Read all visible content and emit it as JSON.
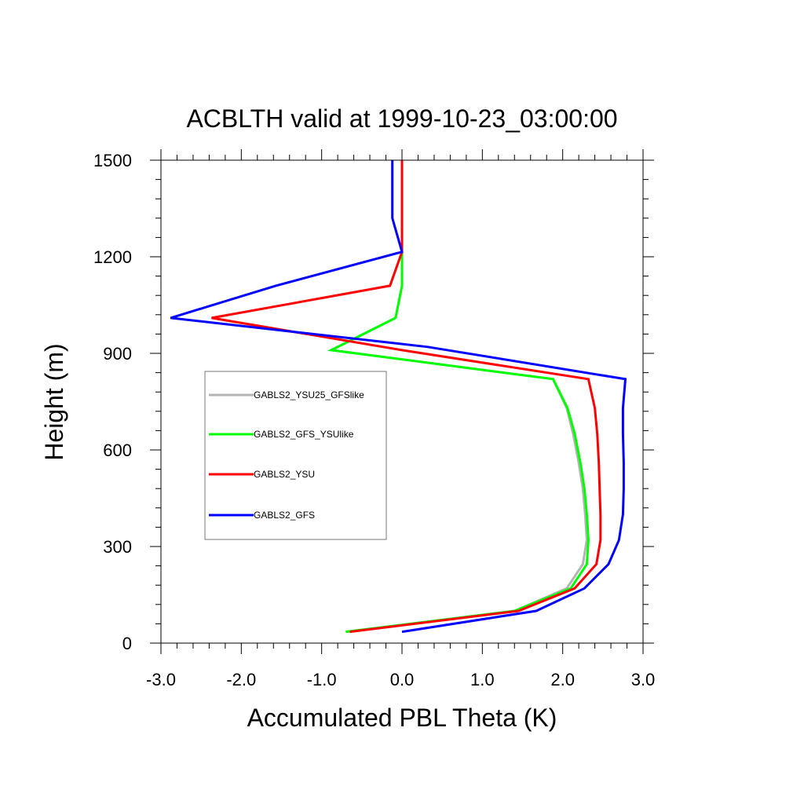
{
  "chart_data": {
    "type": "line",
    "title": "ACBLTH valid at 1999-10-23_03:00:00",
    "xlabel": "Accumulated PBL Theta (K)",
    "ylabel": "Height (m)",
    "xlim": [
      -3.0,
      3.0
    ],
    "ylim": [
      0,
      1500
    ],
    "xticks": [
      -3.0,
      -2.0,
      -1.0,
      0.0,
      1.0,
      2.0,
      3.0
    ],
    "xtick_labels": [
      "-3.0",
      "-2.0",
      "-1.0",
      "0.0",
      "1.0",
      "2.0",
      "3.0"
    ],
    "yticks": [
      0,
      300,
      600,
      900,
      1200,
      1500
    ],
    "ytick_labels": [
      "0",
      "300",
      "600",
      "900",
      "1200",
      "1500"
    ],
    "grid": false,
    "legend_position": "left-middle",
    "series": [
      {
        "name": "GABLS2_YSU25_GFSlike",
        "color": "#b4b4b4",
        "points": [
          [
            -0.7,
            35
          ],
          [
            1.4,
            100
          ],
          [
            2.05,
            170
          ],
          [
            2.25,
            245
          ],
          [
            2.3,
            320
          ],
          [
            2.28,
            400
          ],
          [
            2.25,
            480
          ],
          [
            2.2,
            560
          ],
          [
            2.13,
            650
          ],
          [
            2.05,
            730
          ],
          [
            1.88,
            820
          ],
          [
            -0.88,
            910
          ],
          [
            -0.08,
            1010
          ],
          [
            0.0,
            1110
          ],
          [
            0.0,
            1215
          ],
          [
            0.0,
            1320
          ],
          [
            0.0,
            1500
          ]
        ]
      },
      {
        "name": "GABLS2_GFS_YSUlike",
        "color": "#00ff00",
        "points": [
          [
            -0.7,
            35
          ],
          [
            1.4,
            100
          ],
          [
            2.1,
            170
          ],
          [
            2.3,
            245
          ],
          [
            2.32,
            320
          ],
          [
            2.3,
            400
          ],
          [
            2.27,
            480
          ],
          [
            2.22,
            560
          ],
          [
            2.15,
            650
          ],
          [
            2.06,
            730
          ],
          [
            1.88,
            820
          ],
          [
            -0.88,
            910
          ],
          [
            -0.08,
            1010
          ],
          [
            0.0,
            1110
          ],
          [
            0.0,
            1215
          ],
          [
            0.0,
            1320
          ],
          [
            0.0,
            1500
          ]
        ]
      },
      {
        "name": "GABLS2_YSU",
        "color": "#ff0000",
        "points": [
          [
            -0.65,
            35
          ],
          [
            1.45,
            100
          ],
          [
            2.15,
            170
          ],
          [
            2.42,
            245
          ],
          [
            2.47,
            320
          ],
          [
            2.47,
            400
          ],
          [
            2.46,
            480
          ],
          [
            2.45,
            560
          ],
          [
            2.43,
            650
          ],
          [
            2.4,
            730
          ],
          [
            2.32,
            820
          ],
          [
            0.0,
            910
          ],
          [
            -2.37,
            1010
          ],
          [
            -0.15,
            1110
          ],
          [
            0.0,
            1215
          ],
          [
            0.0,
            1320
          ],
          [
            0.0,
            1500
          ]
        ]
      },
      {
        "name": "GABLS2_GFS",
        "color": "#0000ff",
        "points": [
          [
            0.0,
            35
          ],
          [
            1.67,
            100
          ],
          [
            2.27,
            170
          ],
          [
            2.57,
            245
          ],
          [
            2.7,
            320
          ],
          [
            2.75,
            400
          ],
          [
            2.76,
            480
          ],
          [
            2.76,
            560
          ],
          [
            2.75,
            650
          ],
          [
            2.75,
            730
          ],
          [
            2.78,
            820
          ],
          [
            0.32,
            920
          ],
          [
            -2.88,
            1010
          ],
          [
            -1.57,
            1110
          ],
          [
            0.0,
            1215
          ],
          [
            -0.12,
            1320
          ],
          [
            -0.12,
            1500
          ]
        ]
      }
    ]
  }
}
